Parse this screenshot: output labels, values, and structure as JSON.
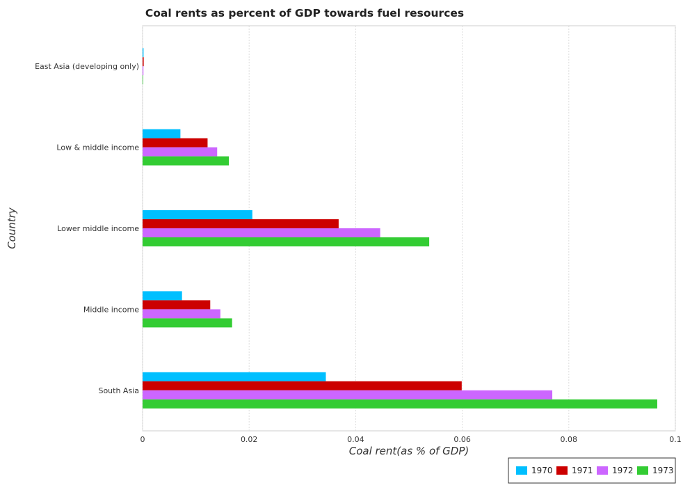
{
  "chart_data": {
    "type": "bar",
    "orientation": "horizontal",
    "title": "Coal rents as percent of GDP towards fuel resources",
    "xlabel": "Coal rent(as % of GDP)",
    "ylabel": "Country",
    "xlim": [
      0,
      0.1
    ],
    "xticks": [
      "0",
      "0.02",
      "0.04",
      "0.06",
      "0.08",
      "0.1"
    ],
    "xtick_values": [
      0,
      0.02,
      0.04,
      0.06,
      0.08,
      0.1
    ],
    "grid": true,
    "legend_position": "bottom-right",
    "categories": [
      "East Asia (developing only)",
      "Low & middle income",
      "Lower middle income",
      "Middle income",
      "South Asia"
    ],
    "series": [
      {
        "name": "1970",
        "color": "#00bfff",
        "values": [
          0.00018,
          0.0071,
          0.0206,
          0.0074,
          0.0344
        ]
      },
      {
        "name": "1971",
        "color": "#cc0000",
        "values": [
          0.00021,
          0.0122,
          0.0368,
          0.0127,
          0.0599
        ]
      },
      {
        "name": "1972",
        "color": "#cc66ff",
        "values": [
          0.00016,
          0.014,
          0.0446,
          0.0146,
          0.0769
        ]
      },
      {
        "name": "1973",
        "color": "#33cc33",
        "values": [
          0.0001,
          0.0162,
          0.0538,
          0.0168,
          0.0966
        ]
      }
    ]
  }
}
